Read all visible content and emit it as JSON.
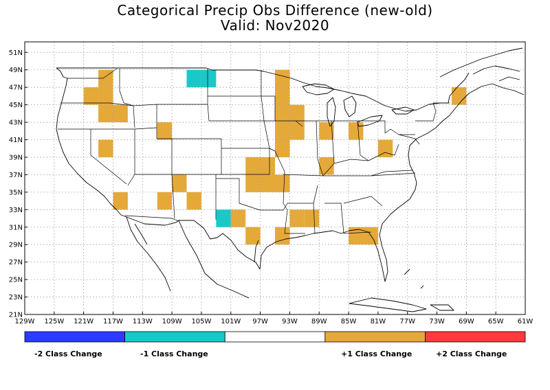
{
  "title": {
    "line1": "Categorical Precip Obs Difference (new-old)",
    "line2": "Valid: Nov2020"
  },
  "axes": {
    "lon_labels": [
      "129W",
      "125W",
      "121W",
      "117W",
      "113W",
      "109W",
      "105W",
      "101W",
      "97W",
      "93W",
      "89W",
      "85W",
      "81W",
      "77W",
      "73W",
      "69W",
      "65W",
      "61W"
    ],
    "lon_values": [
      129,
      125,
      121,
      117,
      113,
      109,
      105,
      101,
      97,
      93,
      89,
      85,
      81,
      77,
      73,
      69,
      65,
      61
    ],
    "lat_labels": [
      "51N",
      "49N",
      "47N",
      "45N",
      "43N",
      "41N",
      "39N",
      "37N",
      "35N",
      "33N",
      "31N",
      "29N",
      "27N",
      "25N",
      "23N",
      "21N"
    ],
    "lat_values": [
      51,
      49,
      47,
      45,
      43,
      41,
      39,
      37,
      35,
      33,
      31,
      29,
      27,
      25,
      23,
      21
    ],
    "lon_range": [
      129,
      61
    ],
    "lat_range": [
      21,
      52.2
    ],
    "grid": "dotted"
  },
  "colors": {
    "minus2": "#2a3cff",
    "minus1": "#19c9c9",
    "zero": "#ffffff",
    "plus1": "#e5a93a",
    "plus2": "#ff3b3b"
  },
  "legend": {
    "labels": [
      "-2 Class Change",
      "-1 Class Change",
      "+1 Class Change",
      "+2 Class Change"
    ],
    "classes": [
      -2,
      -1,
      0,
      1,
      2
    ]
  },
  "chart_data": {
    "type": "heatmap",
    "cell_size_deg": 2,
    "cells": [
      {
        "lon": -106,
        "lat": 48,
        "value": -1
      },
      {
        "lon": -104,
        "lat": 48,
        "value": -1
      },
      {
        "lon": -102,
        "lat": 32,
        "value": -1
      },
      {
        "lon": -118,
        "lat": 48,
        "value": 1
      },
      {
        "lon": -120,
        "lat": 46,
        "value": 1
      },
      {
        "lon": -118,
        "lat": 46,
        "value": 1
      },
      {
        "lon": -118,
        "lat": 44,
        "value": 1
      },
      {
        "lon": -116,
        "lat": 44,
        "value": 1
      },
      {
        "lon": -118,
        "lat": 40,
        "value": 1
      },
      {
        "lon": -110,
        "lat": 42,
        "value": 1
      },
      {
        "lon": -108,
        "lat": 36,
        "value": 1
      },
      {
        "lon": -110,
        "lat": 34,
        "value": 1
      },
      {
        "lon": -106,
        "lat": 34,
        "value": 1
      },
      {
        "lon": -116,
        "lat": 34,
        "value": 1
      },
      {
        "lon": -94,
        "lat": 48,
        "value": 1
      },
      {
        "lon": -94,
        "lat": 46,
        "value": 1
      },
      {
        "lon": -94,
        "lat": 44,
        "value": 1
      },
      {
        "lon": -92,
        "lat": 44,
        "value": 1
      },
      {
        "lon": -94,
        "lat": 42,
        "value": 1
      },
      {
        "lon": -92,
        "lat": 42,
        "value": 1
      },
      {
        "lon": -94,
        "lat": 40,
        "value": 1
      },
      {
        "lon": -96,
        "lat": 38,
        "value": 1
      },
      {
        "lon": -98,
        "lat": 38,
        "value": 1
      },
      {
        "lon": -96,
        "lat": 36,
        "value": 1
      },
      {
        "lon": -98,
        "lat": 36,
        "value": 1
      },
      {
        "lon": -94,
        "lat": 36,
        "value": 1
      },
      {
        "lon": -100,
        "lat": 32,
        "value": 1
      },
      {
        "lon": -98,
        "lat": 30,
        "value": 1
      },
      {
        "lon": -94,
        "lat": 30,
        "value": 1
      },
      {
        "lon": -92,
        "lat": 32,
        "value": 1
      },
      {
        "lon": -90,
        "lat": 32,
        "value": 1
      },
      {
        "lon": -88,
        "lat": 42,
        "value": 1
      },
      {
        "lon": -88,
        "lat": 38,
        "value": 1
      },
      {
        "lon": -84,
        "lat": 42,
        "value": 1
      },
      {
        "lon": -80,
        "lat": 40,
        "value": 1
      },
      {
        "lon": -84,
        "lat": 30,
        "value": 1
      },
      {
        "lon": -82,
        "lat": 30,
        "value": 1
      },
      {
        "lon": -70,
        "lat": 46,
        "value": 1
      }
    ]
  }
}
